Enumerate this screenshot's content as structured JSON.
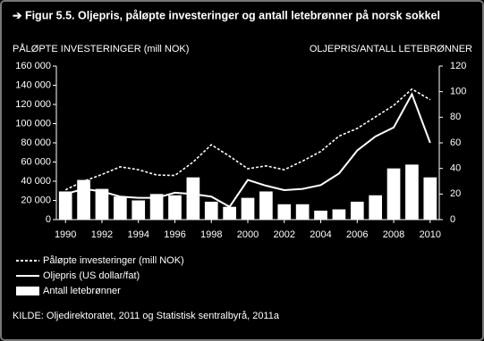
{
  "chart_data": {
    "type": "combo",
    "title": "➔ Figur 5.5. Oljepris, påløpte investeringer og antall letebrønner på norsk sokkel",
    "y_label": "PÅLØPTE INVESTERINGER (mill NOK)",
    "y2_label": "OLJEPRIS/ANTALL LETEBRØNNER",
    "source": "KILDE: Oljedirektoratet, 2011 og Statistisk sentralbyrå, 2011a",
    "x": [
      1990,
      1991,
      1992,
      1993,
      1994,
      1995,
      1996,
      1997,
      1998,
      1999,
      2000,
      2001,
      2002,
      2003,
      2004,
      2005,
      2006,
      2007,
      2008,
      2009,
      2010
    ],
    "xlim": [
      1989.5,
      2010.5
    ],
    "xticks": [
      1990,
      1992,
      1994,
      1996,
      1998,
      2000,
      2002,
      2004,
      2006,
      2008,
      2010
    ],
    "ylim": [
      0,
      160000
    ],
    "yticks": [
      0,
      {
        "value": 20000,
        "label": "20 000"
      },
      {
        "value": 40000,
        "label": "40 000"
      },
      {
        "value": 60000,
        "label": "60 000"
      },
      {
        "value": 80000,
        "label": "80 000"
      },
      {
        "value": 100000,
        "label": "100 000"
      },
      {
        "value": 120000,
        "label": "120 000"
      },
      {
        "value": 140000,
        "label": "140 000"
      },
      {
        "value": 160000,
        "label": "160 000"
      }
    ],
    "y2lim": [
      0,
      120
    ],
    "y2ticks": [
      0,
      20,
      40,
      60,
      80,
      100,
      120
    ],
    "grid": false,
    "series": [
      {
        "name": "Påløpte investeringer (mill NOK)",
        "type": "line",
        "dashed": true,
        "color": "#ffffff",
        "values": [
          31000,
          40000,
          47000,
          55000,
          52000,
          46500,
          46000,
          60000,
          78000,
          66000,
          53000,
          56000,
          52000,
          61000,
          71000,
          87000,
          95000,
          107000,
          119000,
          136000,
          125000
        ]
      },
      {
        "name": "Oljepris (US dollar/fat)",
        "type": "line",
        "dashed": false,
        "color": "#ffffff",
        "axis": "y2",
        "values": [
          20,
          24,
          22,
          18,
          17,
          17,
          21,
          20,
          18,
          10,
          31,
          26.5,
          23,
          24,
          27,
          36,
          54,
          65,
          72,
          98,
          60
        ]
      },
      {
        "name": "Antall letebrønner",
        "type": "bar",
        "color": "#ffffff",
        "axis": "y2",
        "values": [
          22,
          31,
          24,
          18,
          15,
          20,
          19,
          33,
          14,
          10,
          17,
          22,
          12,
          12,
          7,
          8,
          14,
          19,
          40,
          43,
          33
        ]
      }
    ]
  }
}
